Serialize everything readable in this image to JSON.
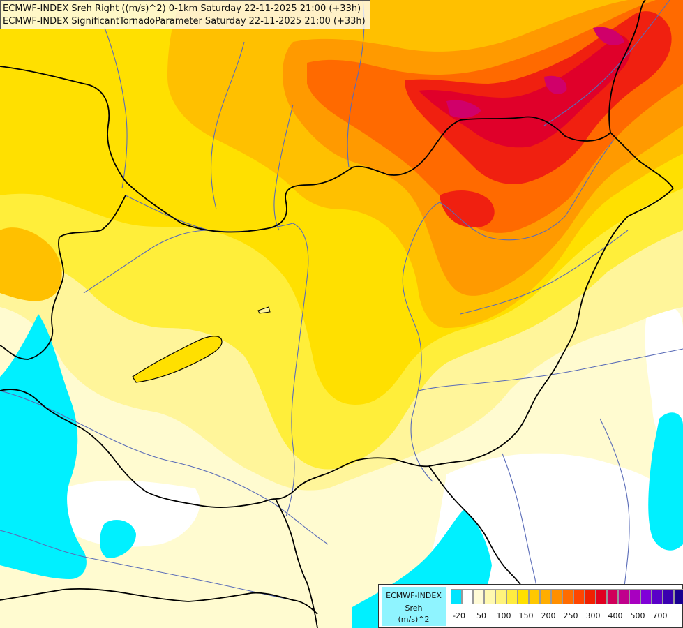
{
  "title": {
    "line1": "ECMWF-INDEX Sreh Right ((m/s)^2) 0-1km Saturday 22-11-2025 21:00 (+33h)",
    "line2": "ECMWF-INDEX SignificantTornadoParameter Saturday 22-11-2025 21:00 (+33h)"
  },
  "legend": {
    "source": "ECMWF-INDEX",
    "variable": "Sreh",
    "unit": "(m/s)^2",
    "tick_labels": [
      "-20",
      "50",
      "100",
      "150",
      "200",
      "250",
      "300",
      "400",
      "500",
      "700"
    ],
    "colors": [
      "#00e5ff",
      "#ffffff",
      "#fffbd6",
      "#fff9b0",
      "#fff37c",
      "#ffec40",
      "#ffe000",
      "#ffc800",
      "#ffad00",
      "#ff8f00",
      "#ff6c00",
      "#ff4500",
      "#f02000",
      "#e00020",
      "#d0005a",
      "#c0008c",
      "#a800c0",
      "#8000d8",
      "#5a00c8",
      "#3a00b0",
      "#1a0090"
    ]
  },
  "colors": {
    "cyan": "#00f0ff",
    "pale_white": "#ffffff",
    "pale_yellow": "#fffbd0",
    "light_yellow": "#fff59a",
    "yellow": "#ffee3a",
    "bright_yellow": "#ffe000",
    "amber": "#ffc000",
    "orange": "#ff9a00",
    "dark_orange": "#ff6a00",
    "red": "#f02010",
    "crimson": "#e0002a",
    "magenta": "#d0006a",
    "border": "#000000",
    "river": "#5a6cb8"
  }
}
